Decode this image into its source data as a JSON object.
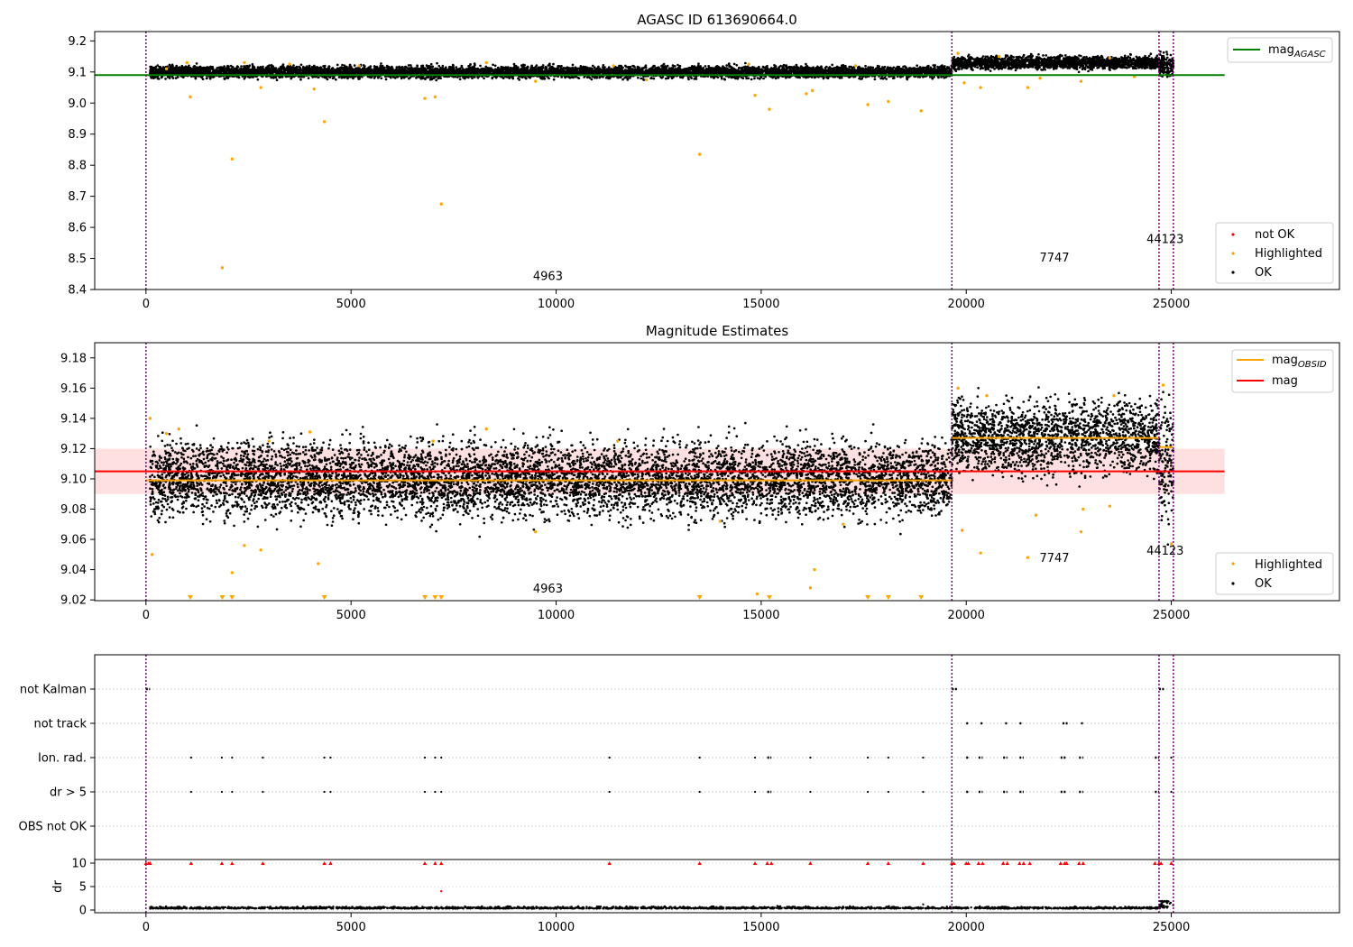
{
  "chart_data": [
    {
      "type": "scatter",
      "title": "AGASC ID 613690664.0",
      "xlabel": "",
      "ylabel": "",
      "xlim": [
        -1250,
        29100
      ],
      "ylim": [
        8.4,
        9.23
      ],
      "xticks": [
        0,
        5000,
        10000,
        15000,
        20000,
        25000
      ],
      "xtick_labels": [
        "0",
        "5000",
        "10000",
        "15000",
        "20000",
        "25000"
      ],
      "yticks": [
        8.4,
        8.5,
        8.6,
        8.7,
        8.8,
        8.9,
        9.0,
        9.1,
        9.2
      ],
      "ytick_labels": [
        "8.4",
        "8.5",
        "8.6",
        "8.7",
        "8.8",
        "8.9",
        "9.0",
        "9.1",
        "9.2"
      ],
      "obs_boundaries": [
        0,
        19650,
        24700,
        25050
      ],
      "obs_labels": [
        {
          "text": "4963",
          "x": 9800,
          "y": 8.43
        },
        {
          "text": "7747",
          "x": 22150,
          "y": 8.49
        },
        {
          "text": "44123",
          "x": 24850,
          "y": 8.55
        }
      ],
      "reference_line": {
        "name": "mag_AGASC",
        "value": 9.09,
        "x": [
          0,
          26300
        ],
        "color": "#008000"
      },
      "ok_segments": [
        {
          "x0": 100,
          "x1": 19650,
          "center": 9.1,
          "spread": 0.017
        },
        {
          "x0": 19650,
          "x1": 24700,
          "center": 9.13,
          "spread": 0.018
        },
        {
          "x0": 24700,
          "x1": 25050,
          "center": 9.12,
          "spread": 0.03
        }
      ],
      "highlighted_points": [
        [
          1860,
          8.47
        ],
        [
          2100,
          8.82
        ],
        [
          7200,
          8.675
        ],
        [
          13500,
          8.835
        ],
        [
          4350,
          8.94
        ],
        [
          1080,
          9.02
        ],
        [
          6800,
          9.015
        ],
        [
          7050,
          9.02
        ],
        [
          14850,
          9.025
        ],
        [
          15200,
          8.98
        ],
        [
          16100,
          9.03
        ],
        [
          16250,
          9.04
        ],
        [
          17600,
          8.995
        ],
        [
          18100,
          9.005
        ],
        [
          18900,
          8.975
        ],
        [
          21500,
          9.05
        ],
        [
          20350,
          9.05
        ],
        [
          19950,
          9.065
        ],
        [
          22800,
          9.07
        ],
        [
          500,
          9.11
        ],
        [
          1000,
          9.13
        ],
        [
          2400,
          9.13
        ],
        [
          2800,
          9.05
        ],
        [
          3500,
          9.125
        ],
        [
          4100,
          9.045
        ],
        [
          5200,
          9.12
        ],
        [
          8300,
          9.13
        ],
        [
          9500,
          9.07
        ],
        [
          11400,
          9.12
        ],
        [
          12200,
          9.075
        ],
        [
          14700,
          9.125
        ],
        [
          17300,
          9.12
        ],
        [
          19800,
          9.16
        ],
        [
          20800,
          9.15
        ],
        [
          21800,
          9.08
        ],
        [
          23500,
          9.145
        ],
        [
          24100,
          9.085
        ]
      ],
      "legend": {
        "placement": "upper right and lower right",
        "entries": [
          {
            "label": "mag",
            "subscript": "AGASC",
            "color": "#008000",
            "kind": "line"
          },
          {
            "label": "not OK",
            "color": "#ff0000",
            "kind": "dot"
          },
          {
            "label": "Highlighted",
            "color": "#ffa500",
            "kind": "dot"
          },
          {
            "label": "OK",
            "color": "#000000",
            "kind": "dot"
          }
        ]
      }
    },
    {
      "type": "scatter",
      "title": "Magnitude Estimates",
      "xlabel": "",
      "ylabel": "",
      "xlim": [
        -1250,
        29100
      ],
      "ylim": [
        9.0195,
        9.19
      ],
      "xticks": [
        0,
        5000,
        10000,
        15000,
        20000,
        25000
      ],
      "xtick_labels": [
        "0",
        "5000",
        "10000",
        "15000",
        "20000",
        "25000"
      ],
      "yticks": [
        9.02,
        9.04,
        9.06,
        9.08,
        9.1,
        9.12,
        9.14,
        9.16,
        9.18
      ],
      "ytick_labels": [
        "9.02",
        "9.04",
        "9.06",
        "9.08",
        "9.10",
        "9.12",
        "9.14",
        "9.16",
        "9.18"
      ],
      "obs_boundaries": [
        0,
        19650,
        24700,
        25050
      ],
      "obs_labels": [
        {
          "text": "4963",
          "x": 9800,
          "y": 9.025
        },
        {
          "text": "7747",
          "x": 22150,
          "y": 9.045
        },
        {
          "text": "44123",
          "x": 24850,
          "y": 9.05
        }
      ],
      "mag_line": {
        "name": "mag",
        "value": 9.105,
        "band": [
          9.09,
          9.12
        ],
        "x": [
          0,
          26300
        ],
        "color": "#ff0000"
      },
      "obsid_mags": [
        {
          "x0": 0,
          "x1": 19650,
          "value": 9.099
        },
        {
          "x0": 19650,
          "x1": 24700,
          "value": 9.127
        },
        {
          "x0": 24700,
          "x1": 25050,
          "value": 9.121
        }
      ],
      "ok_segments": [
        {
          "x0": 100,
          "x1": 19650,
          "center": 9.1,
          "spread": 0.022
        },
        {
          "x0": 19650,
          "x1": 24700,
          "center": 9.128,
          "spread": 0.022
        },
        {
          "x0": 24700,
          "x1": 25050,
          "center": 9.115,
          "spread": 0.035
        }
      ],
      "highlighted_points": [
        [
          100,
          9.14
        ],
        [
          150,
          9.05
        ],
        [
          2100,
          9.038
        ],
        [
          2400,
          9.056
        ],
        [
          2800,
          9.053
        ],
        [
          4200,
          9.044
        ],
        [
          16300,
          9.04
        ],
        [
          16200,
          9.028
        ],
        [
          14900,
          9.024
        ],
        [
          19900,
          9.066
        ],
        [
          20350,
          9.051
        ],
        [
          21500,
          9.048
        ],
        [
          21700,
          9.076
        ],
        [
          22800,
          9.065
        ],
        [
          22850,
          9.08
        ],
        [
          23500,
          9.082
        ],
        [
          25000,
          9.057
        ],
        [
          500,
          9.13
        ],
        [
          800,
          9.133
        ],
        [
          3000,
          9.125
        ],
        [
          4000,
          9.131
        ],
        [
          7000,
          9.125
        ],
        [
          8300,
          9.133
        ],
        [
          9500,
          9.065
        ],
        [
          11500,
          9.125
        ],
        [
          14000,
          9.072
        ],
        [
          17000,
          9.07
        ],
        [
          19800,
          9.16
        ],
        [
          20500,
          9.155
        ],
        [
          23600,
          9.155
        ],
        [
          24800,
          9.162
        ]
      ],
      "clipped_points_x": [
        1080,
        1860,
        2100,
        4350,
        6800,
        7050,
        7200,
        13500,
        15200,
        17600,
        18100,
        18900
      ],
      "legend": {
        "placement": "upper right and lower right",
        "entries": [
          {
            "label": "mag",
            "subscript": "OBSID",
            "color": "#ffa500",
            "kind": "line"
          },
          {
            "label": "mag",
            "color": "#ff0000",
            "kind": "line"
          },
          {
            "label": "Highlighted",
            "color": "#ffa500",
            "kind": "dot"
          },
          {
            "label": "OK",
            "color": "#000000",
            "kind": "dot"
          }
        ]
      }
    },
    {
      "type": "scatter",
      "title": "",
      "xlabel": "",
      "ylabel": "dr",
      "xlim": [
        -1250,
        29100
      ],
      "ylim": [
        -1,
        11
      ],
      "xticks": [
        0,
        5000,
        10000,
        15000,
        20000,
        25000
      ],
      "xtick_labels": [
        "0",
        "5000",
        "10000",
        "15000",
        "20000",
        "25000"
      ],
      "yticks": [
        0,
        5,
        10
      ],
      "ytick_labels": [
        "0",
        "5",
        "10"
      ],
      "flag_categories": [
        "not Kalman",
        "not track",
        "Ion. rad.",
        "dr > 5",
        "OBS not OK"
      ],
      "obs_boundaries": [
        0,
        19650,
        24700,
        25050
      ],
      "flags": {
        "not Kalman": [
          [
            0,
            100
          ],
          [
            19650,
            19780
          ],
          [
            24700,
            24850
          ]
        ],
        "not track": [
          [
            20000,
            20060
          ],
          [
            20350,
            20420
          ],
          [
            20950,
            21000
          ],
          [
            21300,
            21360
          ],
          [
            22350,
            22480
          ],
          [
            22800,
            22860
          ]
        ],
        "Ion. rad.": [
          [
            1100
          ],
          [
            1850
          ],
          [
            2100
          ],
          [
            2850
          ],
          [
            4350
          ],
          [
            4500
          ],
          [
            6800
          ],
          [
            7050
          ],
          [
            7200
          ],
          [
            11300
          ],
          [
            13500
          ],
          [
            14850
          ],
          [
            15150,
            15250
          ],
          [
            16200
          ],
          [
            17600
          ],
          [
            18100
          ],
          [
            18950
          ],
          [
            20000,
            20080
          ],
          [
            20300,
            20400
          ],
          [
            20900,
            21000
          ],
          [
            21300,
            21400
          ],
          [
            22300,
            22450
          ],
          [
            22750,
            22850
          ],
          [
            24600,
            24700
          ],
          [
            25000
          ]
        ],
        "dr > 5": [
          [
            1100
          ],
          [
            1850
          ],
          [
            2100
          ],
          [
            2850
          ],
          [
            4350
          ],
          [
            4500
          ],
          [
            6800
          ],
          [
            7050
          ],
          [
            7200
          ],
          [
            11300
          ],
          [
            13500
          ],
          [
            14850
          ],
          [
            15150,
            15250
          ],
          [
            16200
          ],
          [
            17600
          ],
          [
            18100
          ],
          [
            18950
          ],
          [
            20000,
            20080
          ],
          [
            20300,
            20400
          ],
          [
            20900,
            21000
          ],
          [
            21300,
            21400
          ],
          [
            22300,
            22450
          ],
          [
            22750,
            22850
          ],
          [
            24600,
            24700
          ],
          [
            25000
          ]
        ]
      },
      "dr_red_x": [
        0,
        60,
        100,
        1100,
        1850,
        2100,
        2850,
        4350,
        4500,
        6800,
        7050,
        7200,
        11300,
        13500,
        14850,
        15150,
        15250,
        16200,
        17600,
        18100,
        18950,
        19650,
        19700,
        20000,
        20050,
        20300,
        20400,
        20900,
        21000,
        21300,
        21400,
        21550,
        22300,
        22400,
        22450,
        22750,
        22850,
        24600,
        24700,
        24750,
        25000
      ],
      "dr_red_outlier": [
        7200,
        4
      ],
      "dr_ok_level": 0.3
    }
  ]
}
